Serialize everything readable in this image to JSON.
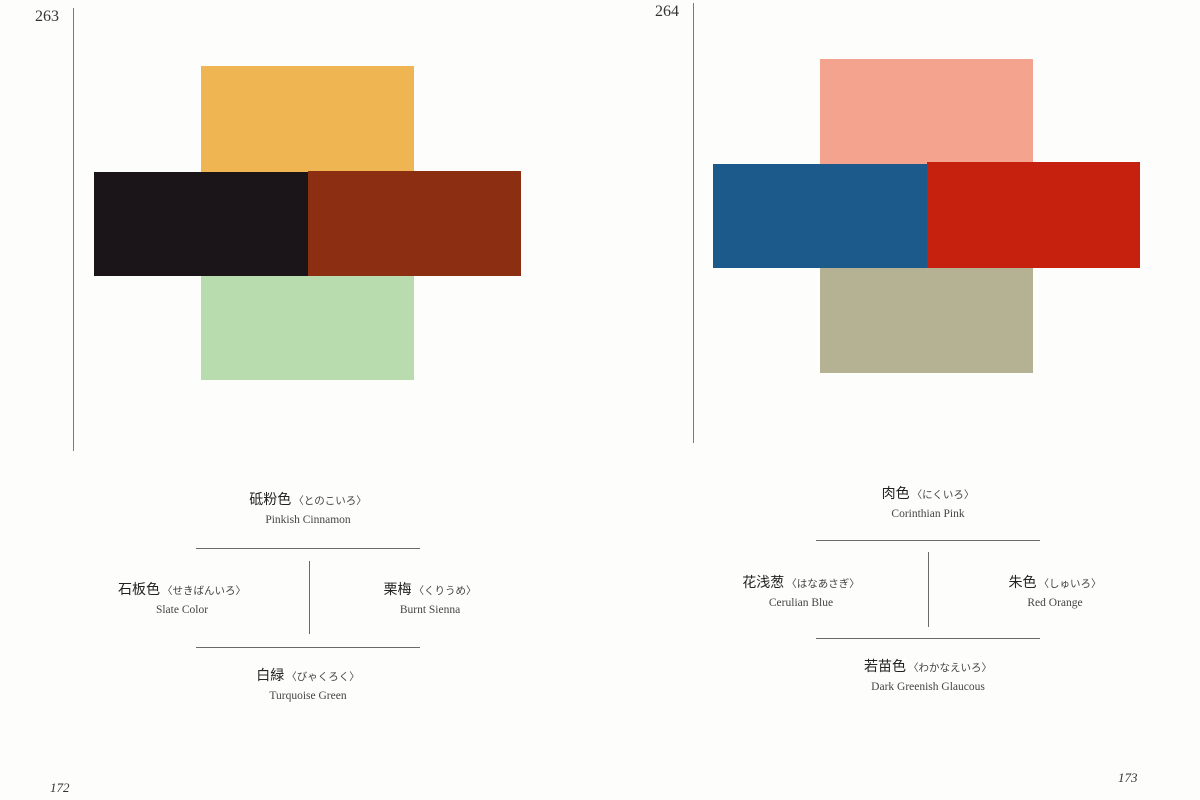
{
  "pages": [
    {
      "plate_number": "263",
      "folio": "172",
      "colors": {
        "top": {
          "jp": "砥粉色",
          "kana": "〈とのこいろ〉",
          "en": "Pinkish Cinnamon",
          "hex": "#efb552"
        },
        "left": {
          "jp": "石板色",
          "kana": "〈せきばんいろ〉",
          "en": "Slate Color",
          "hex": "#1b1519"
        },
        "right": {
          "jp": "栗梅",
          "kana": "〈くりうめ〉",
          "en": "Burnt Sienna",
          "hex": "#8b2e12"
        },
        "bottom": {
          "jp": "白緑",
          "kana": "〈びゃくろく〉",
          "en": "Turquoise Green",
          "hex": "#b9dcaf"
        }
      }
    },
    {
      "plate_number": "264",
      "folio": "173",
      "colors": {
        "top": {
          "jp": "肉色",
          "kana": "〈にくいろ〉",
          "en": "Corinthian Pink",
          "hex": "#f4a48e"
        },
        "left": {
          "jp": "花浅葱",
          "kana": "〈はなあさぎ〉",
          "en": "Cerulian Blue",
          "hex": "#1d5a8c"
        },
        "right": {
          "jp": "朱色",
          "kana": "〈しゅいろ〉",
          "en": "Red Orange",
          "hex": "#c6200f"
        },
        "bottom": {
          "jp": "若苗色",
          "kana": "〈わかなえいろ〉",
          "en": "Dark Greenish Glaucous",
          "hex": "#b4b293"
        }
      }
    }
  ]
}
